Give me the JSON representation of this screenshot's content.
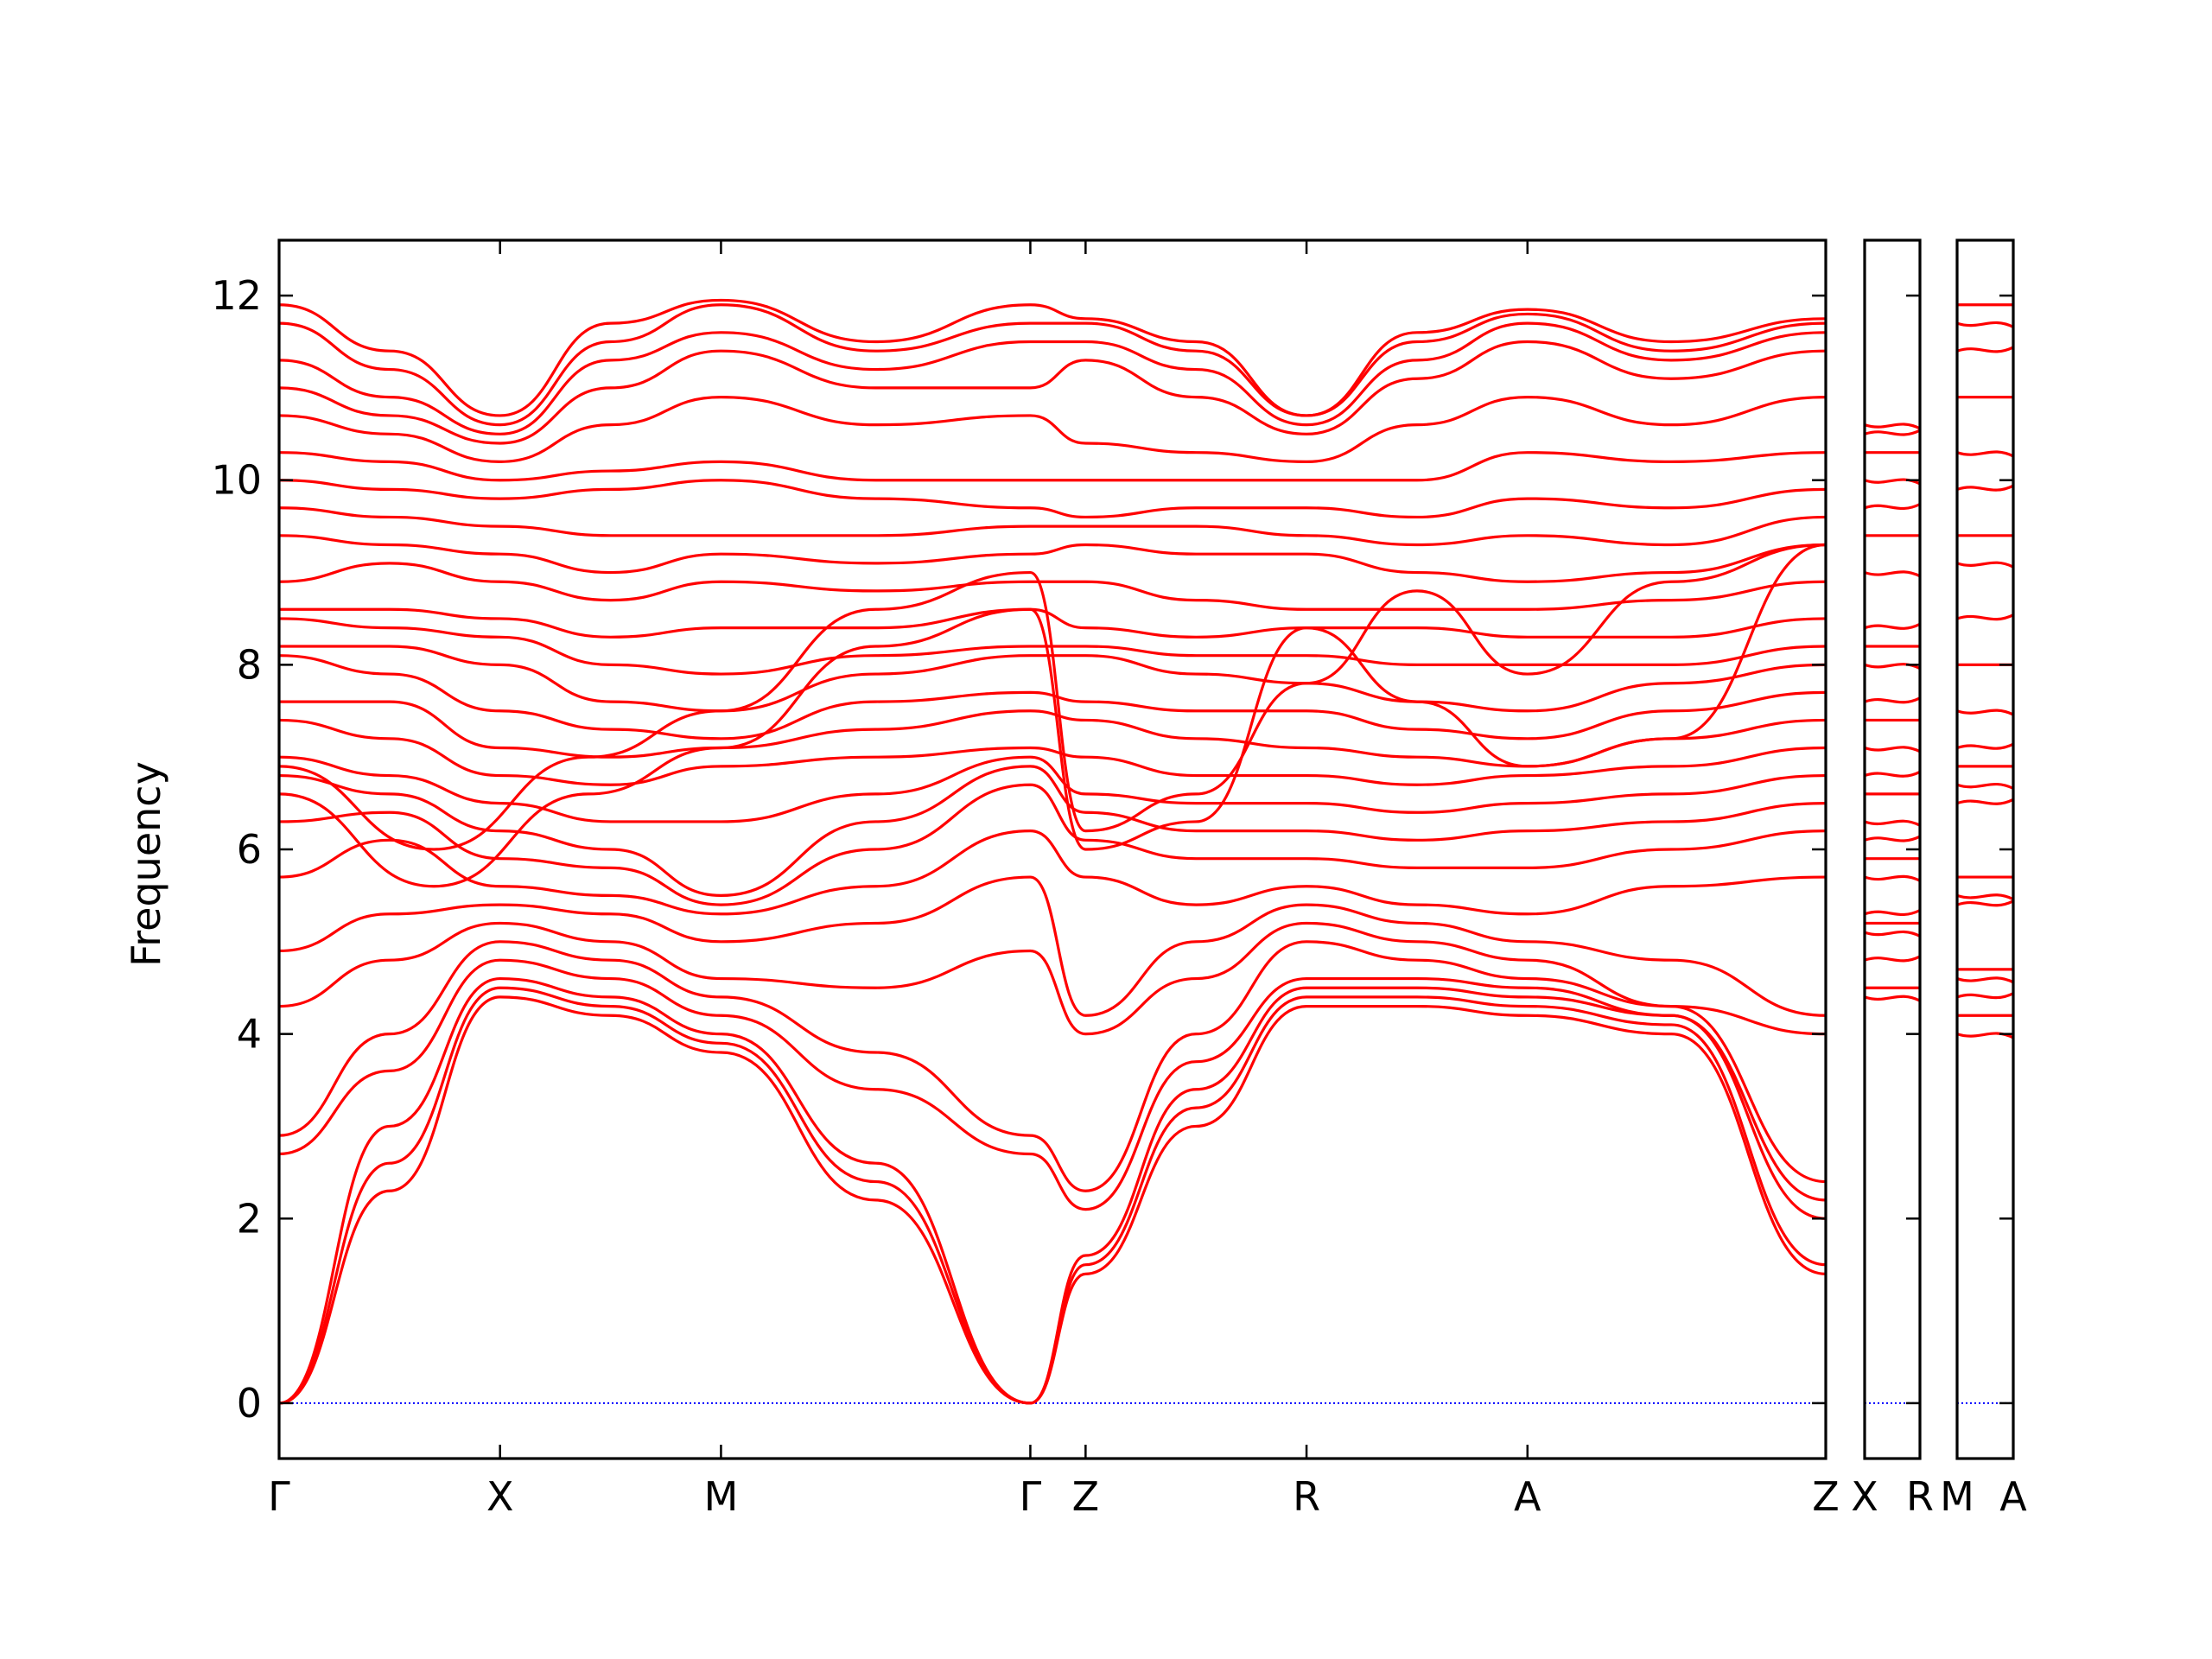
{
  "chart_data": {
    "type": "line",
    "title": "",
    "xlabel": "",
    "ylabel": "Frequency",
    "ylim": [
      -0.6,
      12.6
    ],
    "grid": false,
    "legend": "none",
    "y_ticks": [
      0,
      2,
      4,
      6,
      8,
      10,
      12
    ],
    "zero_line_color": "#0000ff",
    "line_color": "#ff0000",
    "panels": [
      {
        "x_range": [
          0.0,
          7.0
        ],
        "kpoints": [
          {
            "label": "Γ",
            "x": 0.0
          },
          {
            "label": "X",
            "x": 1.0
          },
          {
            "label": "M",
            "x": 2.0
          },
          {
            "label": "Γ",
            "x": 3.4
          },
          {
            "label": "Z",
            "x": 3.65
          },
          {
            "label": "R",
            "x": 4.65
          },
          {
            "label": "A",
            "x": 5.65
          },
          {
            "label": "Z",
            "x": 7.0
          }
        ]
      },
      {
        "x_range": [
          0.0,
          1.0
        ],
        "kpoints": [
          {
            "label": "X",
            "x": 0.0
          },
          {
            "label": "R",
            "x": 1.0
          }
        ]
      },
      {
        "x_range": [
          0.0,
          1.0
        ],
        "kpoints": [
          {
            "label": "M",
            "x": 0.0
          },
          {
            "label": "A",
            "x": 1.0
          }
        ]
      }
    ],
    "series": [
      {
        "panel": 0,
        "x": [
          0,
          0.5,
          1.0,
          1.5,
          2.0,
          2.7,
          3.4,
          3.65,
          4.15,
          4.65,
          5.15,
          5.65,
          6.3,
          7.0
        ],
        "y": [
          0.0,
          2.3,
          4.4,
          4.2,
          3.8,
          2.2,
          0.0,
          1.4,
          3.0,
          4.3,
          4.3,
          4.2,
          4.0,
          1.4
        ]
      },
      {
        "panel": 0,
        "x": [
          0,
          0.5,
          1.0,
          1.5,
          2.0,
          2.7,
          3.4,
          3.65,
          4.15,
          4.65,
          5.15,
          5.65,
          6.3,
          7.0
        ],
        "y": [
          0.0,
          2.6,
          4.5,
          4.3,
          3.9,
          2.4,
          0.0,
          1.5,
          3.2,
          4.4,
          4.4,
          4.3,
          4.1,
          1.5
        ]
      },
      {
        "panel": 0,
        "x": [
          0,
          0.5,
          1.0,
          1.5,
          2.0,
          2.7,
          3.4,
          3.65,
          4.15,
          4.65,
          5.15,
          5.65,
          6.3,
          7.0
        ],
        "y": [
          0.0,
          3.0,
          4.6,
          4.4,
          4.0,
          2.6,
          0.0,
          1.6,
          3.4,
          4.5,
          4.5,
          4.4,
          4.2,
          2.0
        ]
      },
      {
        "panel": 0,
        "x": [
          0,
          0.5,
          1.0,
          1.5,
          2.0,
          2.7,
          3.4,
          3.65,
          4.15,
          4.65,
          5.15,
          5.65,
          6.3,
          7.0
        ],
        "y": [
          2.7,
          3.6,
          4.8,
          4.6,
          4.2,
          3.4,
          2.7,
          2.1,
          3.7,
          4.6,
          4.6,
          4.5,
          4.2,
          2.2
        ]
      },
      {
        "panel": 0,
        "x": [
          0,
          0.5,
          1.0,
          1.5,
          2.0,
          2.7,
          3.4,
          3.65,
          4.15,
          4.65,
          5.15,
          5.65,
          6.3,
          7.0
        ],
        "y": [
          2.9,
          4.0,
          5.0,
          4.8,
          4.4,
          3.8,
          2.9,
          2.3,
          4.0,
          5.0,
          4.8,
          4.6,
          4.3,
          2.4
        ]
      },
      {
        "panel": 0,
        "x": [
          0,
          0.5,
          1.0,
          1.5,
          2.0,
          2.7,
          3.4,
          3.65,
          4.15,
          4.65,
          5.15,
          5.65,
          6.3,
          7.0
        ],
        "y": [
          4.3,
          4.8,
          5.2,
          5.0,
          4.6,
          4.5,
          4.9,
          4.0,
          4.6,
          5.2,
          5.0,
          4.8,
          4.3,
          4.0
        ]
      },
      {
        "panel": 0,
        "x": [
          0,
          0.5,
          1.0,
          1.5,
          2.0,
          2.7,
          3.4,
          3.65,
          4.15,
          4.65,
          5.15,
          5.65,
          6.3,
          7.0
        ],
        "y": [
          4.9,
          5.3,
          5.4,
          5.3,
          5.0,
          5.2,
          5.7,
          4.2,
          5.0,
          5.4,
          5.2,
          5.0,
          4.8,
          4.2
        ]
      },
      {
        "panel": 0,
        "x": [
          0,
          0.5,
          1.0,
          1.5,
          2.0,
          2.7,
          3.4,
          3.65,
          4.15,
          4.65,
          5.15,
          5.65,
          6.3,
          7.0
        ],
        "y": [
          5.7,
          6.1,
          5.6,
          5.5,
          5.3,
          5.6,
          6.2,
          5.7,
          5.4,
          5.6,
          5.4,
          5.3,
          5.6,
          5.7
        ]
      },
      {
        "panel": 0,
        "x": [
          0,
          0.5,
          1.0,
          1.5,
          2.0,
          2.7,
          3.4,
          3.65,
          4.15,
          4.65,
          5.15,
          5.65,
          6.3,
          7.0
        ],
        "y": [
          6.3,
          6.4,
          5.9,
          5.8,
          5.4,
          6.0,
          6.7,
          6.1,
          5.9,
          5.9,
          5.8,
          5.8,
          6.0,
          6.2
        ]
      },
      {
        "panel": 0,
        "x": [
          0,
          0.5,
          1.0,
          1.5,
          2.0,
          2.7,
          3.4,
          3.65,
          4.15,
          4.65,
          5.15,
          5.65,
          6.3,
          7.0
        ],
        "y": [
          6.8,
          6.6,
          6.2,
          6.0,
          5.5,
          6.3,
          6.9,
          6.4,
          6.2,
          6.2,
          6.1,
          6.2,
          6.3,
          6.5
        ]
      },
      {
        "panel": 0,
        "x": [
          0,
          0.5,
          1.0,
          1.5,
          2.0,
          2.7,
          3.4,
          3.65,
          4.15,
          4.65,
          5.15,
          5.65,
          6.3,
          7.0
        ],
        "y": [
          7.0,
          6.8,
          6.5,
          6.3,
          6.3,
          6.6,
          7.0,
          6.6,
          6.5,
          6.5,
          6.4,
          6.5,
          6.6,
          6.8
        ]
      },
      {
        "panel": 0,
        "x": [
          0,
          0.5,
          1.0,
          1.5,
          2.0,
          2.7,
          3.4,
          3.65,
          4.15,
          4.65,
          5.15,
          5.65,
          6.3,
          7.0
        ],
        "y": [
          7.4,
          7.2,
          6.8,
          6.7,
          6.9,
          7.0,
          7.1,
          7.0,
          6.8,
          6.8,
          6.7,
          6.8,
          6.9,
          7.1
        ]
      },
      {
        "panel": 0,
        "x": [
          0,
          0.5,
          1.0,
          1.5,
          2.0,
          2.7,
          3.4,
          3.65,
          4.15,
          4.65,
          5.15,
          5.65,
          6.3,
          7.0
        ],
        "y": [
          7.6,
          7.6,
          7.1,
          7.0,
          7.1,
          7.3,
          7.5,
          7.4,
          7.2,
          7.1,
          7.0,
          6.9,
          7.2,
          7.4
        ]
      },
      {
        "panel": 0,
        "x": [
          0,
          0.5,
          1.0,
          1.5,
          2.0,
          2.7,
          3.4,
          3.65,
          4.15,
          4.65,
          5.15,
          5.65,
          6.3,
          7.0
        ],
        "y": [
          8.1,
          7.9,
          7.5,
          7.3,
          7.2,
          7.6,
          7.7,
          7.6,
          7.5,
          7.5,
          7.3,
          7.2,
          7.5,
          7.7
        ]
      },
      {
        "panel": 0,
        "x": [
          0,
          0.5,
          1.0,
          1.5,
          2.0,
          2.7,
          3.4,
          3.65,
          4.15,
          4.65,
          5.15,
          5.65,
          6.3,
          7.0
        ],
        "y": [
          8.2,
          8.2,
          8.0,
          7.6,
          7.5,
          7.9,
          8.1,
          8.1,
          7.9,
          7.8,
          7.6,
          7.5,
          7.8,
          8.0
        ]
      },
      {
        "panel": 0,
        "x": [
          0,
          0.5,
          1.0,
          1.5,
          2.0,
          2.7,
          3.4,
          3.65,
          4.15,
          4.65,
          5.15,
          5.65,
          6.3,
          7.0
        ],
        "y": [
          8.5,
          8.4,
          8.3,
          8.0,
          7.9,
          8.1,
          8.2,
          8.2,
          8.1,
          8.1,
          8.0,
          8.0,
          8.0,
          8.2
        ]
      },
      {
        "panel": 0,
        "x": [
          0,
          0.5,
          1.0,
          1.5,
          2.0,
          2.7,
          3.4,
          3.65,
          4.15,
          4.65,
          5.15,
          5.65,
          6.3,
          7.0
        ],
        "y": [
          8.6,
          8.6,
          8.5,
          8.3,
          8.4,
          8.4,
          8.6,
          8.4,
          8.3,
          8.4,
          8.4,
          8.3,
          8.3,
          8.5
        ]
      },
      {
        "panel": 0,
        "x": [
          0,
          0.5,
          1.0,
          1.5,
          2.0,
          2.7,
          3.4,
          3.65,
          4.15,
          4.65,
          5.15,
          5.65,
          6.3,
          7.0
        ],
        "y": [
          8.9,
          9.1,
          8.9,
          8.7,
          8.9,
          8.8,
          8.9,
          8.9,
          8.7,
          8.6,
          8.6,
          8.6,
          8.7,
          8.9
        ]
      },
      {
        "panel": 0,
        "x": [
          0,
          0.5,
          1.0,
          1.5,
          2.0,
          2.7,
          3.4,
          3.65,
          4.15,
          4.65,
          5.15,
          5.65,
          6.3,
          7.0
        ],
        "y": [
          9.4,
          9.3,
          9.2,
          9.0,
          9.2,
          9.1,
          9.2,
          9.3,
          9.2,
          9.2,
          9.0,
          8.9,
          9.0,
          9.3
        ]
      },
      {
        "panel": 0,
        "x": [
          0,
          0.5,
          1.0,
          1.5,
          2.0,
          2.7,
          3.4,
          3.65,
          4.15,
          4.65,
          5.15,
          5.65,
          6.3,
          7.0
        ],
        "y": [
          9.7,
          9.6,
          9.5,
          9.4,
          9.4,
          9.4,
          9.5,
          9.5,
          9.5,
          9.4,
          9.3,
          9.4,
          9.3,
          9.6
        ]
      },
      {
        "panel": 0,
        "x": [
          0,
          0.5,
          1.0,
          1.5,
          2.0,
          2.7,
          3.4,
          3.65,
          4.15,
          4.65,
          5.15,
          5.65,
          6.3,
          7.0
        ],
        "y": [
          10.0,
          9.9,
          9.8,
          9.9,
          10.0,
          9.8,
          9.7,
          9.6,
          9.7,
          9.7,
          9.6,
          9.8,
          9.7,
          9.9
        ]
      },
      {
        "panel": 0,
        "x": [
          0,
          0.5,
          1.0,
          1.5,
          2.0,
          2.7,
          3.4,
          3.65,
          4.15,
          4.65,
          5.15,
          5.65,
          6.3,
          7.0
        ],
        "y": [
          10.3,
          10.2,
          10.0,
          10.1,
          10.2,
          10.0,
          10.0,
          10.0,
          10.0,
          10.0,
          10.0,
          10.3,
          10.2,
          10.3
        ]
      },
      {
        "panel": 0,
        "x": [
          0,
          0.5,
          1.0,
          1.5,
          2.0,
          2.7,
          3.4,
          3.65,
          4.15,
          4.65,
          5.15,
          5.65,
          6.3,
          7.0
        ],
        "y": [
          10.7,
          10.5,
          10.2,
          10.6,
          10.9,
          10.6,
          10.7,
          10.4,
          10.3,
          10.2,
          10.6,
          10.9,
          10.6,
          10.9
        ]
      },
      {
        "panel": 0,
        "x": [
          0,
          0.5,
          1.0,
          1.5,
          2.0,
          2.7,
          3.4,
          3.65,
          4.15,
          4.65,
          5.15,
          5.65,
          6.3,
          7.0
        ],
        "y": [
          11.0,
          10.7,
          10.4,
          11.0,
          11.4,
          11.0,
          11.0,
          11.3,
          10.9,
          10.5,
          11.1,
          11.5,
          11.1,
          11.4
        ]
      },
      {
        "panel": 0,
        "x": [
          0,
          0.5,
          1.0,
          1.5,
          2.0,
          2.7,
          3.4,
          3.65,
          4.15,
          4.65,
          5.15,
          5.65,
          6.3,
          7.0
        ],
        "y": [
          11.3,
          10.9,
          10.5,
          11.3,
          11.6,
          11.2,
          11.5,
          11.5,
          11.2,
          10.6,
          11.3,
          11.7,
          11.3,
          11.6
        ]
      },
      {
        "panel": 0,
        "x": [
          0,
          0.5,
          1.0,
          1.5,
          2.0,
          2.7,
          3.4,
          3.65,
          4.15,
          4.65,
          5.15,
          5.65,
          6.3,
          7.0
        ],
        "y": [
          11.7,
          11.2,
          10.6,
          11.5,
          11.9,
          11.4,
          11.7,
          11.7,
          11.4,
          10.7,
          11.5,
          11.8,
          11.4,
          11.7
        ]
      },
      {
        "panel": 0,
        "x": [
          0,
          0.5,
          1.0,
          1.5,
          2.0,
          2.7,
          3.4,
          3.65,
          4.15,
          4.65,
          5.15,
          5.65,
          6.3,
          7.0
        ],
        "y": [
          11.9,
          11.4,
          10.7,
          11.7,
          11.95,
          11.5,
          11.9,
          11.75,
          11.5,
          10.7,
          11.6,
          11.85,
          11.5,
          11.75
        ]
      },
      {
        "panel": 0,
        "x": [
          0,
          0.7,
          1.4,
          2.0,
          2.7,
          3.4,
          3.65,
          4.15,
          4.65,
          5.15,
          5.65,
          6.3,
          7.0
        ],
        "y": [
          6.9,
          6.0,
          7.0,
          7.5,
          8.6,
          9.0,
          6.2,
          6.6,
          7.8,
          8.8,
          7.9,
          8.9,
          9.3
        ]
      },
      {
        "panel": 0,
        "x": [
          0,
          0.7,
          1.4,
          2.0,
          2.7,
          3.4,
          3.65,
          4.15,
          4.65,
          5.15,
          5.65,
          6.3,
          7.0
        ],
        "y": [
          6.6,
          5.6,
          6.6,
          7.1,
          8.2,
          8.6,
          6.0,
          6.3,
          8.4,
          7.6,
          6.9,
          7.2,
          9.3
        ]
      }
    ],
    "side_panels": {
      "XR_levels": [
        4.4,
        4.5,
        4.8,
        5.1,
        5.2,
        5.3,
        5.7,
        5.9,
        6.1,
        6.3,
        6.6,
        6.8,
        7.1,
        7.4,
        7.6,
        8.0,
        8.2,
        8.4,
        9.0,
        9.4,
        9.7,
        10.0,
        10.3,
        10.5,
        10.6
      ],
      "MA_levels": [
        4.0,
        4.2,
        4.4,
        4.6,
        4.7,
        5.4,
        5.5,
        5.7,
        6.5,
        6.7,
        6.9,
        7.1,
        7.5,
        8.0,
        8.5,
        9.1,
        9.4,
        9.9,
        10.3,
        10.9,
        11.4,
        11.7,
        11.9
      ]
    }
  }
}
